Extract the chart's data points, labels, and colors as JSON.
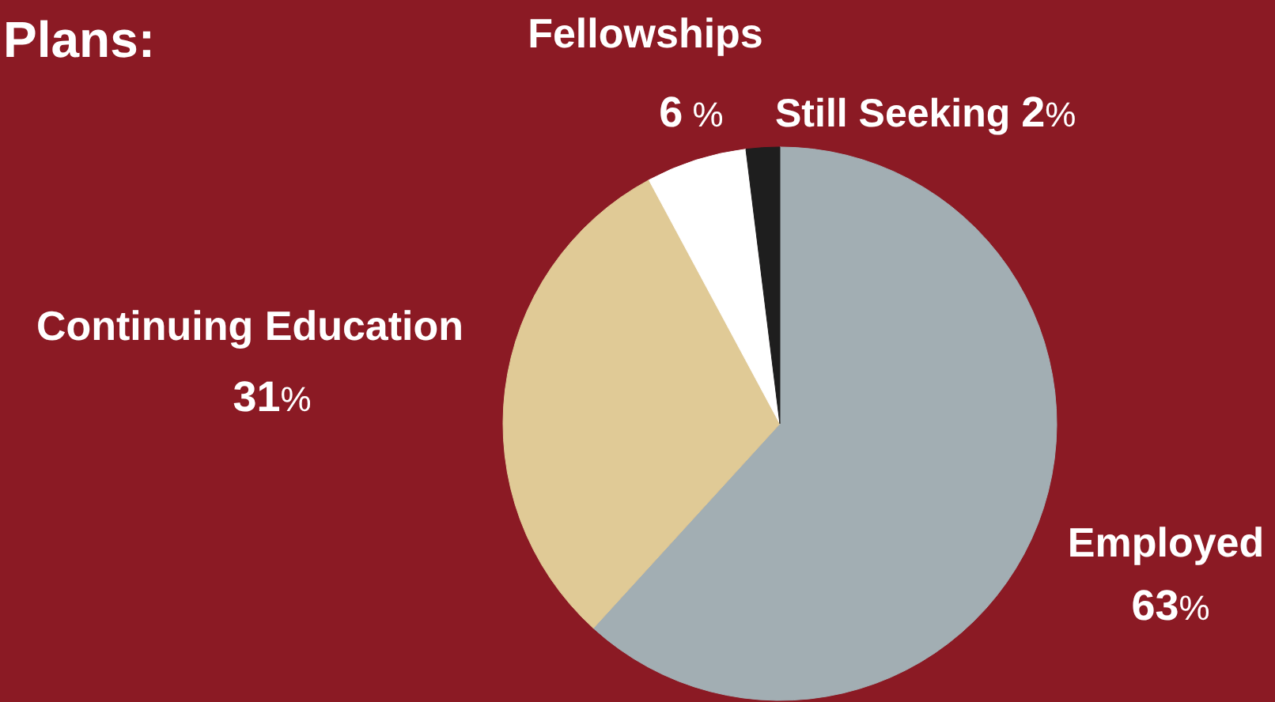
{
  "chart_data": {
    "type": "pie",
    "title": "Plans:",
    "categories": [
      "Employed",
      "Continuing Education",
      "Fellowships",
      "Still Seeking"
    ],
    "values": [
      63,
      31,
      6,
      2
    ],
    "colors": [
      "#a2aeb3",
      "#e0ca96",
      "#ffffff",
      "#1e1e1e"
    ],
    "value_labels": [
      "63%",
      "31%",
      "6 %",
      "2%"
    ]
  }
}
